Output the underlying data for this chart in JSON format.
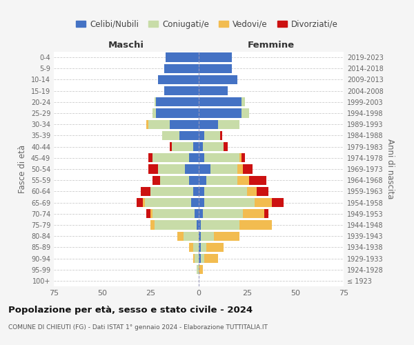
{
  "age_groups": [
    "100+",
    "95-99",
    "90-94",
    "85-89",
    "80-84",
    "75-79",
    "70-74",
    "65-69",
    "60-64",
    "55-59",
    "50-54",
    "45-49",
    "40-44",
    "35-39",
    "30-34",
    "25-29",
    "20-24",
    "15-19",
    "10-14",
    "5-9",
    "0-4"
  ],
  "birth_years": [
    "≤ 1923",
    "1924-1928",
    "1929-1933",
    "1934-1938",
    "1939-1943",
    "1944-1948",
    "1949-1953",
    "1954-1958",
    "1959-1963",
    "1964-1968",
    "1969-1973",
    "1974-1978",
    "1979-1983",
    "1984-1988",
    "1989-1993",
    "1994-1998",
    "1999-2003",
    "2004-2008",
    "2009-2013",
    "2014-2018",
    "2019-2023"
  ],
  "maschi": {
    "celibi": [
      0,
      0,
      0,
      0,
      0,
      1,
      2,
      4,
      3,
      5,
      7,
      5,
      3,
      10,
      15,
      22,
      22,
      18,
      21,
      18,
      17
    ],
    "coniugati": [
      0,
      1,
      2,
      3,
      8,
      22,
      22,
      24,
      22,
      15,
      14,
      19,
      11,
      9,
      11,
      2,
      1,
      0,
      0,
      0,
      0
    ],
    "vedovi": [
      0,
      0,
      1,
      2,
      3,
      2,
      1,
      1,
      0,
      0,
      0,
      0,
      0,
      0,
      1,
      0,
      0,
      0,
      0,
      0,
      0
    ],
    "divorziati": [
      0,
      0,
      0,
      0,
      0,
      0,
      2,
      3,
      5,
      4,
      5,
      2,
      1,
      0,
      0,
      0,
      0,
      0,
      0,
      0,
      0
    ]
  },
  "femmine": {
    "nubili": [
      0,
      0,
      1,
      1,
      1,
      1,
      2,
      3,
      3,
      4,
      6,
      3,
      2,
      3,
      10,
      22,
      22,
      15,
      20,
      17,
      17
    ],
    "coniugate": [
      0,
      0,
      2,
      3,
      7,
      20,
      21,
      26,
      22,
      16,
      14,
      18,
      11,
      8,
      11,
      4,
      2,
      0,
      0,
      0,
      0
    ],
    "vedove": [
      0,
      2,
      7,
      9,
      13,
      17,
      11,
      9,
      5,
      6,
      3,
      1,
      0,
      0,
      0,
      0,
      0,
      0,
      0,
      0,
      0
    ],
    "divorziate": [
      0,
      0,
      0,
      0,
      0,
      0,
      2,
      6,
      6,
      9,
      5,
      2,
      2,
      1,
      0,
      0,
      0,
      0,
      0,
      0,
      0
    ]
  },
  "colors": {
    "celibi": "#4472C4",
    "coniugati": "#c8dca8",
    "vedovi": "#F2BC50",
    "divorziati": "#CC1111"
  },
  "title": "Popolazione per età, sesso e stato civile - 2024",
  "subtitle": "COMUNE DI CHIEUTI (FG) - Dati ISTAT 1° gennaio 2024 - Elaborazione TUTTITALIA.IT",
  "xlabel_left": "Maschi",
  "xlabel_right": "Femmine",
  "ylabel": "Fasce di età",
  "ylabel_right": "Anni di nascita",
  "xlim": 75,
  "bg_color": "#f5f5f5",
  "plot_bg": "#ffffff",
  "legend_labels": [
    "Celibi/Nubili",
    "Coniugati/e",
    "Vedovi/e",
    "Divorziati/e"
  ]
}
